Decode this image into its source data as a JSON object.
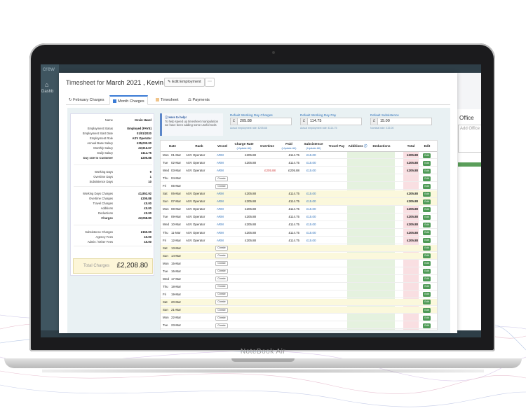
{
  "device": {
    "name": "NoteBook Air"
  },
  "background_app": {
    "logo": "crew",
    "home_label": "Dashb",
    "office_title": "Office",
    "office_placeholder": "Add Office"
  },
  "modal": {
    "title_prefix": "Timesheet for ",
    "title_period": "March 2021 , Kevin Haxel",
    "edit_employment": "Edit Employment",
    "tabs": [
      {
        "label": "February Charges",
        "icon": "rotate-icon"
      },
      {
        "label": "Month Charges",
        "icon": "month-icon"
      },
      {
        "label": "Timesheet",
        "icon": "timesheet-icon"
      },
      {
        "label": "Payments",
        "icon": "payments-icon"
      }
    ]
  },
  "summary": {
    "rows": [
      {
        "k": "Name",
        "v": "Kevin Haxel"
      },
      {
        "k": "Employment Status",
        "v": "Employed (PAYE)"
      },
      {
        "k": "Employment Start Date",
        "v": "01/01/2020"
      },
      {
        "k": "Employment Role",
        "v": "ASV Operator"
      },
      {
        "k": "Annual Base Salary",
        "v": "£35,000.00"
      },
      {
        "k": "Monthly Salary",
        "v": "£2,916.67"
      },
      {
        "k": "Daily Salary",
        "v": "£114.75"
      },
      {
        "k": "Day rate to Customer",
        "v": "£205.88"
      },
      {
        "k": "Working Days",
        "v": "9"
      },
      {
        "k": "Overtime Days",
        "v": "1"
      },
      {
        "k": "Subsistence Days",
        "v": "10"
      },
      {
        "k": "Working Days Charges",
        "v": "£1,852.92"
      },
      {
        "k": "Overtime Charges",
        "v": "£205.88"
      },
      {
        "k": "Travel Charges",
        "v": "£0.00"
      },
      {
        "k": "Additions",
        "v": "£0.00"
      },
      {
        "k": "Deductions",
        "v": "£0.00"
      },
      {
        "k": "Charges",
        "v": "£2,058.80"
      },
      {
        "k": "Subsistence Charges",
        "v": "£150.00"
      },
      {
        "k": "Agency Fees",
        "v": "£0.00"
      },
      {
        "k": "Admin / Other Fees",
        "v": "£0.00"
      }
    ],
    "total_label": "Total Charges",
    "total_value": "£2,208.80"
  },
  "help": {
    "title": "Here to help!",
    "text": "To help speed up timesheet manipulation we have been adding some useful tools"
  },
  "defaults": [
    {
      "label": "Default Working Day Charges",
      "currency": "£",
      "value": "205.88",
      "note": "Actual employment rate: £205.88"
    },
    {
      "label": "Default Working Day Pay",
      "currency": "£",
      "value": "114.75",
      "note": "Actual employment rate: £114.75"
    },
    {
      "label": "Default Subsistence",
      "currency": "£",
      "value": "15.00",
      "note": "Nominal rate: £15.00"
    }
  ],
  "grid": {
    "headers": {
      "date": "Date",
      "rank": "Rank",
      "vessel": "Vessel",
      "charge_rate": "Charge Rate",
      "charge_rate_sub": "(Update All)",
      "overtime": "Overtime",
      "paid": "Paid",
      "paid_sub": "(Update All)",
      "subsistence": "Subsistence",
      "subsistence_sub": "(Update All)",
      "travel_pay": "Travel Pay",
      "additions": "Additions",
      "deductions": "Deductions",
      "total": "Total",
      "edit": "Edit"
    },
    "create_label": "Create",
    "edit_label": "Edit",
    "rows": [
      {
        "day": "Mon",
        "date": "01-Mar",
        "rank": "ASV Operator",
        "vessel": "ARM",
        "charge": "£205.88",
        "overtime": "",
        "paid": "£114.75",
        "subs": "£15.00",
        "total": "£205.88",
        "weekend": false
      },
      {
        "day": "Tue",
        "date": "02-Mar",
        "rank": "ASV Operator",
        "vessel": "ARM",
        "charge": "£205.88",
        "overtime": "",
        "paid": "£114.75",
        "subs": "£15.00",
        "total": "£205.88",
        "weekend": false
      },
      {
        "day": "Wed",
        "date": "03-Mar",
        "rank": "ASV Operator",
        "vessel": "ARM",
        "charge": "",
        "overtime": "£205.88",
        "paid": "£205.88",
        "subs": "£15.00",
        "total": "£205.88",
        "weekend": false
      },
      {
        "day": "Thu",
        "date": "04-Mar",
        "rank": "",
        "vessel": "",
        "charge": "",
        "overtime": "",
        "paid": "",
        "subs": "",
        "total": "",
        "weekend": false
      },
      {
        "day": "Fri",
        "date": "05-Mar",
        "rank": "",
        "vessel": "",
        "charge": "",
        "overtime": "",
        "paid": "",
        "subs": "",
        "total": "",
        "weekend": false
      },
      {
        "day": "Sat",
        "date": "06-Mar",
        "rank": "ASV Operator",
        "vessel": "ARM",
        "charge": "£205.88",
        "overtime": "",
        "paid": "£114.75",
        "subs": "£15.00",
        "total": "£205.88",
        "weekend": true
      },
      {
        "day": "Sun",
        "date": "07-Mar",
        "rank": "ASV Operator",
        "vessel": "ARM",
        "charge": "£205.88",
        "overtime": "",
        "paid": "£114.75",
        "subs": "£15.00",
        "total": "£205.88",
        "weekend": true
      },
      {
        "day": "Mon",
        "date": "08-Mar",
        "rank": "ASV Operator",
        "vessel": "ARM",
        "charge": "£205.88",
        "overtime": "",
        "paid": "£114.75",
        "subs": "£15.00",
        "total": "£205.88",
        "weekend": false
      },
      {
        "day": "Tue",
        "date": "09-Mar",
        "rank": "ASV Operator",
        "vessel": "ARM",
        "charge": "£205.88",
        "overtime": "",
        "paid": "£114.75",
        "subs": "£15.00",
        "total": "£205.88",
        "weekend": false
      },
      {
        "day": "Wed",
        "date": "10-Mar",
        "rank": "ASV Operator",
        "vessel": "ARM",
        "charge": "£205.88",
        "overtime": "",
        "paid": "£114.75",
        "subs": "£15.00",
        "total": "£205.88",
        "weekend": false
      },
      {
        "day": "Thu",
        "date": "11-Mar",
        "rank": "ASV Operator",
        "vessel": "ARM",
        "charge": "£205.88",
        "overtime": "",
        "paid": "£114.75",
        "subs": "£15.00",
        "total": "£205.88",
        "weekend": false
      },
      {
        "day": "Fri",
        "date": "12-Mar",
        "rank": "ASV Operator",
        "vessel": "ARM",
        "charge": "£205.88",
        "overtime": "",
        "paid": "£114.75",
        "subs": "£15.00",
        "total": "£205.88",
        "weekend": false
      },
      {
        "day": "Sat",
        "date": "13-Mar",
        "rank": "",
        "vessel": "",
        "charge": "",
        "overtime": "",
        "paid": "",
        "subs": "",
        "total": "",
        "weekend": true
      },
      {
        "day": "Sun",
        "date": "14-Mar",
        "rank": "",
        "vessel": "",
        "charge": "",
        "overtime": "",
        "paid": "",
        "subs": "",
        "total": "",
        "weekend": true
      },
      {
        "day": "Mon",
        "date": "15-Mar",
        "rank": "",
        "vessel": "",
        "charge": "",
        "overtime": "",
        "paid": "",
        "subs": "",
        "total": "",
        "weekend": false
      },
      {
        "day": "Tue",
        "date": "16-Mar",
        "rank": "",
        "vessel": "",
        "charge": "",
        "overtime": "",
        "paid": "",
        "subs": "",
        "total": "",
        "weekend": false
      },
      {
        "day": "Wed",
        "date": "17-Mar",
        "rank": "",
        "vessel": "",
        "charge": "",
        "overtime": "",
        "paid": "",
        "subs": "",
        "total": "",
        "weekend": false
      },
      {
        "day": "Thu",
        "date": "18-Mar",
        "rank": "",
        "vessel": "",
        "charge": "",
        "overtime": "",
        "paid": "",
        "subs": "",
        "total": "",
        "weekend": false
      },
      {
        "day": "Fri",
        "date": "19-Mar",
        "rank": "",
        "vessel": "",
        "charge": "",
        "overtime": "",
        "paid": "",
        "subs": "",
        "total": "",
        "weekend": false
      },
      {
        "day": "Sat",
        "date": "20-Mar",
        "rank": "",
        "vessel": "",
        "charge": "",
        "overtime": "",
        "paid": "",
        "subs": "",
        "total": "",
        "weekend": true
      },
      {
        "day": "Sun",
        "date": "21-Mar",
        "rank": "",
        "vessel": "",
        "charge": "",
        "overtime": "",
        "paid": "",
        "subs": "",
        "total": "",
        "weekend": true
      },
      {
        "day": "Mon",
        "date": "22-Mar",
        "rank": "",
        "vessel": "",
        "charge": "",
        "overtime": "",
        "paid": "",
        "subs": "",
        "total": "",
        "weekend": false
      },
      {
        "day": "Tue",
        "date": "23-Mar",
        "rank": "",
        "vessel": "",
        "charge": "",
        "overtime": "",
        "paid": "",
        "subs": "",
        "total": "",
        "weekend": false
      }
    ]
  },
  "colors": {
    "accent": "#2d6fb8",
    "weekend_row": "#fbf8dc",
    "additions_col": "#e5f2df",
    "total_col": "#f9dfe2",
    "edit_button": "#4e9a56"
  }
}
